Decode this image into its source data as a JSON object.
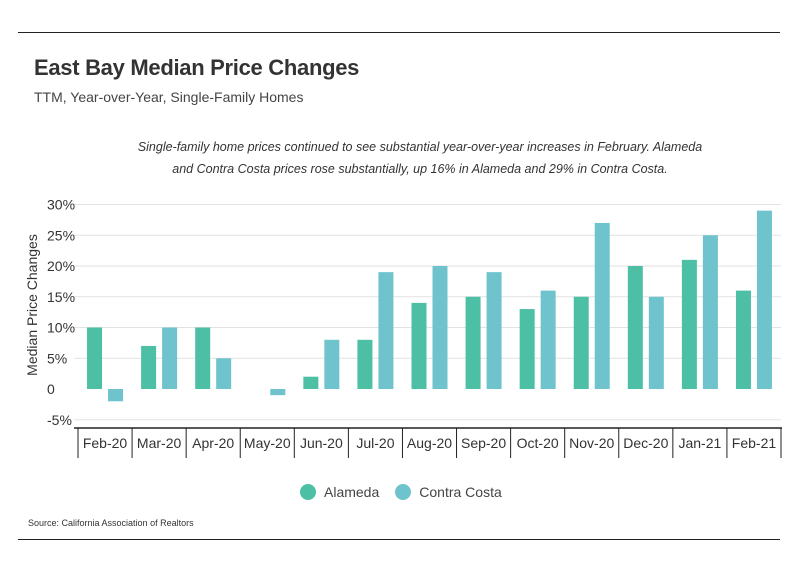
{
  "header": {
    "title": "East Bay Median Price Changes",
    "subtitle": "TTM, Year-over-Year, Single-Family Homes"
  },
  "annotation": {
    "line1": "Single-family home prices continued to see substantial year-over-year increases in February. Alameda",
    "line2": "and Contra Costa prices rose substantially, up 16% in Alameda and 29% in Contra Costa."
  },
  "source": "Source:  California Association of Realtors",
  "colors": {
    "alameda": "#4dbfa4",
    "contra_costa": "#6fc3cc"
  },
  "chart_data": {
    "type": "bar",
    "title": "East Bay Median Price Changes",
    "ylabel": "Median Price Changes",
    "xlabel": "",
    "ylim": [
      -5,
      30
    ],
    "yticks": [
      -5,
      0,
      5,
      10,
      15,
      20,
      25,
      30
    ],
    "ytick_labels": [
      "-5%",
      "0",
      "5%",
      "10%",
      "15%",
      "20%",
      "25%",
      "30%"
    ],
    "grid": true,
    "legend_position": "bottom-center",
    "categories": [
      "Feb-20",
      "Mar-20",
      "Apr-20",
      "May-20",
      "Jun-20",
      "Jul-20",
      "Aug-20",
      "Sep-20",
      "Oct-20",
      "Nov-20",
      "Dec-20",
      "Jan-21",
      "Feb-21"
    ],
    "series": [
      {
        "name": "Alameda",
        "values": [
          10,
          7,
          10,
          0,
          2,
          8,
          14,
          15,
          13,
          15,
          20,
          21,
          16
        ]
      },
      {
        "name": "Contra Costa",
        "values": [
          -2,
          10,
          5,
          -1,
          8,
          19,
          20,
          19,
          16,
          27,
          15,
          25,
          29
        ]
      }
    ]
  }
}
